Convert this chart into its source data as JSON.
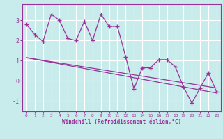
{
  "xlabel": "Windchill (Refroidissement éolien,°C)",
  "background_color": "#c8ecec",
  "grid_color": "#ffffff",
  "line_color": "#993399",
  "xlim": [
    -0.5,
    23.5
  ],
  "ylim": [
    -1.5,
    3.8
  ],
  "yticks": [
    -1,
    0,
    1,
    2,
    3
  ],
  "xticks": [
    0,
    1,
    2,
    3,
    4,
    5,
    6,
    7,
    8,
    9,
    10,
    11,
    12,
    13,
    14,
    15,
    16,
    17,
    18,
    19,
    20,
    21,
    22,
    23
  ],
  "series_x": [
    0,
    1,
    2,
    3,
    4,
    5,
    6,
    7,
    8,
    9,
    10,
    11,
    12,
    13,
    14,
    15,
    16,
    17,
    18,
    19,
    20,
    21,
    22,
    23
  ],
  "series_y": [
    2.8,
    2.3,
    1.95,
    3.3,
    3.0,
    2.1,
    2.0,
    2.95,
    2.0,
    3.3,
    2.7,
    2.7,
    1.2,
    -0.4,
    0.65,
    0.65,
    1.05,
    1.05,
    0.7,
    -0.3,
    -1.1,
    -0.35,
    0.4,
    -0.55
  ],
  "trend1_x": [
    0,
    23
  ],
  "trend1_y": [
    1.15,
    -0.6
  ],
  "trend2_x": [
    0,
    23
  ],
  "trend2_y": [
    1.15,
    -0.35
  ]
}
